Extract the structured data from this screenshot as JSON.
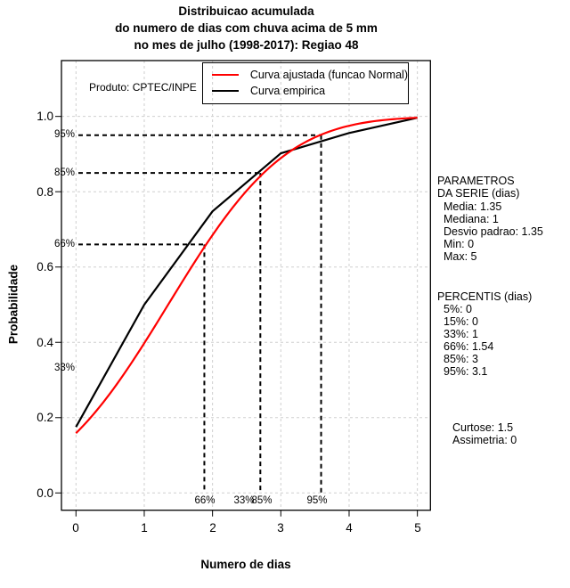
{
  "title": {
    "line1": "Distribuicao acumulada",
    "line2": "do numero de dias com chuva acima de 5 mm",
    "line3": "no mes de julho (1998-2017): Regiao 48"
  },
  "produto_label": "Produto: CPTEC/INPE",
  "legend": {
    "items": [
      {
        "label": "Curva ajustada (funcao Normal)",
        "color": "#ff0000"
      },
      {
        "label": "Curva empirica",
        "color": "#000000"
      }
    ]
  },
  "axes": {
    "xlabel": "Numero de dias",
    "ylabel": "Probabilidade",
    "x_ticks": [
      "0",
      "1",
      "2",
      "3",
      "4",
      "5"
    ],
    "y_ticks": [
      "0.0",
      "0.2",
      "0.4",
      "0.6",
      "0.8",
      "1.0"
    ]
  },
  "chart_data": {
    "type": "line",
    "title": "Distribuicao acumulada do numero de dias com chuva acima de 5 mm no mes de julho (1998-2017): Regiao 48",
    "xlabel": "Numero de dias",
    "ylabel": "Probabilidade",
    "xlim": [
      0,
      5
    ],
    "ylim": [
      0,
      1
    ],
    "grid": true,
    "legend_position": "top",
    "grid_color": "#cfcfcf",
    "series": [
      {
        "name": "Curva ajustada (funcao Normal)",
        "color": "#ff0000",
        "model": "normal_cdf",
        "mean": 1.35,
        "sd": 1.35,
        "x_range": [
          0,
          5
        ]
      },
      {
        "name": "Curva empirica",
        "color": "#000000",
        "points": [
          [
            0,
            0.175
          ],
          [
            1,
            0.5
          ],
          [
            2,
            0.748
          ],
          [
            3,
            0.902
          ],
          [
            3.1,
            0.9075
          ],
          [
            4,
            0.956
          ],
          [
            5,
            0.9965
          ]
        ]
      }
    ],
    "percentile_guides": [
      {
        "label": "66%",
        "x": 1.88,
        "y": 0.66
      },
      {
        "label": "85%",
        "x": 2.7,
        "y": 0.85
      },
      {
        "label": "95%",
        "x": 3.59,
        "y": 0.95
      }
    ],
    "left_percent_labels": [
      {
        "text": "95%",
        "y": 0.95
      },
      {
        "text": "85%",
        "y": 0.85
      },
      {
        "text": "66%",
        "y": 0.66
      },
      {
        "text": "33%",
        "y": 0.33
      }
    ],
    "bottom_percent_labels": [
      {
        "text": "66%",
        "x": 1.89
      },
      {
        "text": "33%",
        "x": 2.46
      },
      {
        "text": "85%",
        "x": 2.72
      },
      {
        "text": "95%",
        "x": 3.53
      }
    ]
  },
  "stats_panel": {
    "parametros_title1": "PARAMETROS",
    "parametros_title2": "DA SERIE (dias)",
    "parametros": [
      "Media: 1.35",
      "Mediana: 1",
      "Desvio padrao: 1.35",
      "Min: 0",
      "Max: 5"
    ],
    "percentis_title": "PERCENTIS (dias)",
    "percentis": [
      "5%: 0",
      "15%: 0",
      "33%: 1",
      "66%: 1.54",
      "85%: 3",
      "95%: 3.1"
    ],
    "curtose": "Curtose: 1.5",
    "assimetria": "Assimetria: 0"
  }
}
